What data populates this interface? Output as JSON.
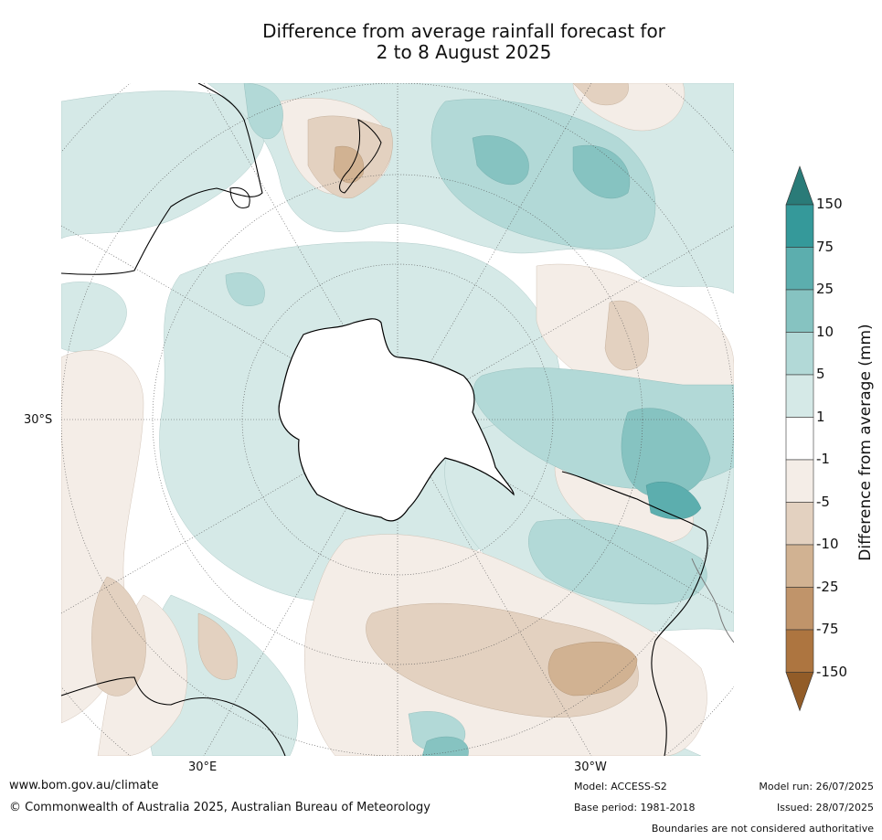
{
  "title_line1": "Difference from average rainfall forecast for",
  "title_line2": "2 to 8 August 2025",
  "map": {
    "projection": "south polar stereographic",
    "lat_label": "30°S",
    "lon_labels": {
      "east": "30°E",
      "west": "30°W"
    }
  },
  "colorbar": {
    "title": "Difference from average (mm)",
    "tick_labels": [
      "150",
      "75",
      "25",
      "10",
      "5",
      "1",
      "-1",
      "-5",
      "-10",
      "-25",
      "-75",
      "-150"
    ],
    "colors": {
      "gt150": "#2a7b78",
      "75_150": "#35999a",
      "25_75": "#5caeae",
      "10_25": "#86c3c1",
      "5_10": "#b2d9d7",
      "1_5": "#d5e9e7",
      "neutral": "#ffffff",
      "m1_m5": "#f4ede7",
      "m5_m10": "#e3d1c0",
      "m10_m25": "#d1b292",
      "m25_m75": "#c0946a",
      "m75_m150": "#ad7540",
      "lt_m150": "#925c28"
    }
  },
  "footer": {
    "website": "www.bom.gov.au/climate",
    "copyright": "© Commonwealth of Australia 2025, Australian Bureau of Meteorology",
    "model": "Model: ACCESS-S2",
    "base_period": "Base period: 1981-2018",
    "model_run": "Model run: 26/07/2025",
    "issued": "Issued: 28/07/2025",
    "boundaries": "Boundaries are not considered authoritative"
  }
}
